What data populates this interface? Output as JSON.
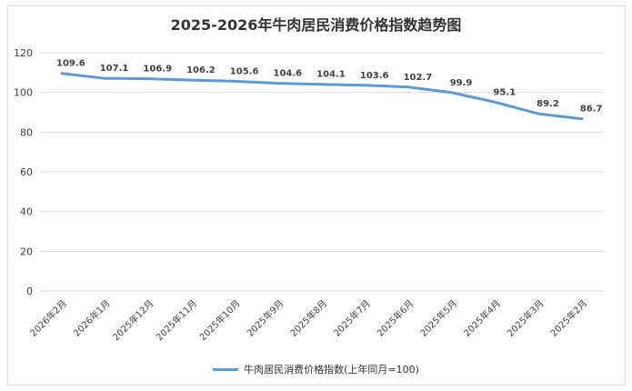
{
  "colors": {
    "series": "#5b9bd5",
    "grid": "#d9d9d9",
    "axis_text": "#404040"
  },
  "chart_data": {
    "type": "line",
    "title": "2025-2026年牛肉居民消费价格指数趋势图",
    "xlabel": "",
    "ylabel": "",
    "ylim": [
      0,
      120
    ],
    "y_ticks": [
      0,
      20,
      40,
      60,
      80,
      100,
      120
    ],
    "grid": true,
    "legend_position": "bottom",
    "categories": [
      "2026年2月",
      "2026年1月",
      "2025年12月",
      "2025年11月",
      "2025年10月",
      "2025年9月",
      "2025年8月",
      "2025年7月",
      "2025年6月",
      "2025年5月",
      "2025年4月",
      "2025年3月",
      "2025年2月"
    ],
    "series": [
      {
        "name": "牛肉居民消费价格指数(上年同月=100)",
        "values": [
          109.6,
          107.1,
          106.9,
          106.2,
          105.6,
          104.6,
          104.1,
          103.6,
          102.7,
          99.9,
          95.1,
          89.2,
          86.7
        ],
        "labels": [
          "109.6",
          "107.1",
          "106.9",
          "106.2",
          "105.6",
          "104.6",
          "104.1",
          "103.6",
          "102.7",
          "99.9",
          "95.1",
          "89.2",
          "86.7"
        ]
      }
    ]
  }
}
